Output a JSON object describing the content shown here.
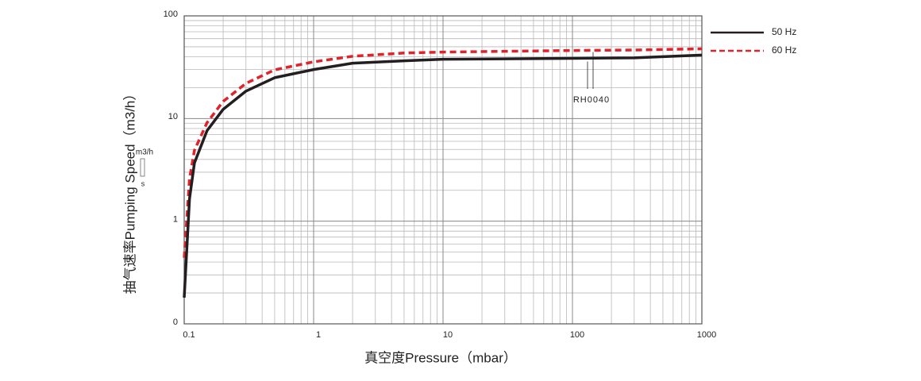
{
  "chart_data": {
    "type": "line",
    "y_label": "抽气速率Pumping Speed（m3/h）",
    "y_unit_top": "m3/h",
    "y_unit_bottom": "s",
    "x_label": "真空度Pressure（mbar）",
    "annotation": "RH0040",
    "log_x": true,
    "log_y": true,
    "grid": true,
    "minor_grid": true,
    "legend": "right",
    "x": [
      0.1,
      0.11,
      0.12,
      0.15,
      0.2,
      0.3,
      0.5,
      1,
      2,
      5,
      10,
      100,
      300,
      1000
    ],
    "series": [
      {
        "name": "50 Hz",
        "color": "#231f20",
        "dash": false,
        "values": [
          0.18,
          1.66,
          3.7,
          7.6,
          12.3,
          18.5,
          25,
          30,
          34.6,
          36.5,
          37.8,
          38.6,
          39,
          41.5
        ]
      },
      {
        "name": "60 Hz",
        "color": "#e0232a",
        "dash": true,
        "values": [
          0.44,
          2.6,
          4.9,
          9.1,
          14.7,
          22,
          29.8,
          35.7,
          40.4,
          43.5,
          44.4,
          46,
          46.5,
          47.8
        ]
      }
    ],
    "xlim": [
      0.1,
      1000
    ],
    "ylim": [
      0.1,
      100
    ],
    "xticks": [
      0.1,
      1,
      10,
      100,
      1000
    ],
    "yticks": [
      {
        "value": 0.1,
        "label": "0"
      },
      1,
      10,
      100
    ]
  }
}
